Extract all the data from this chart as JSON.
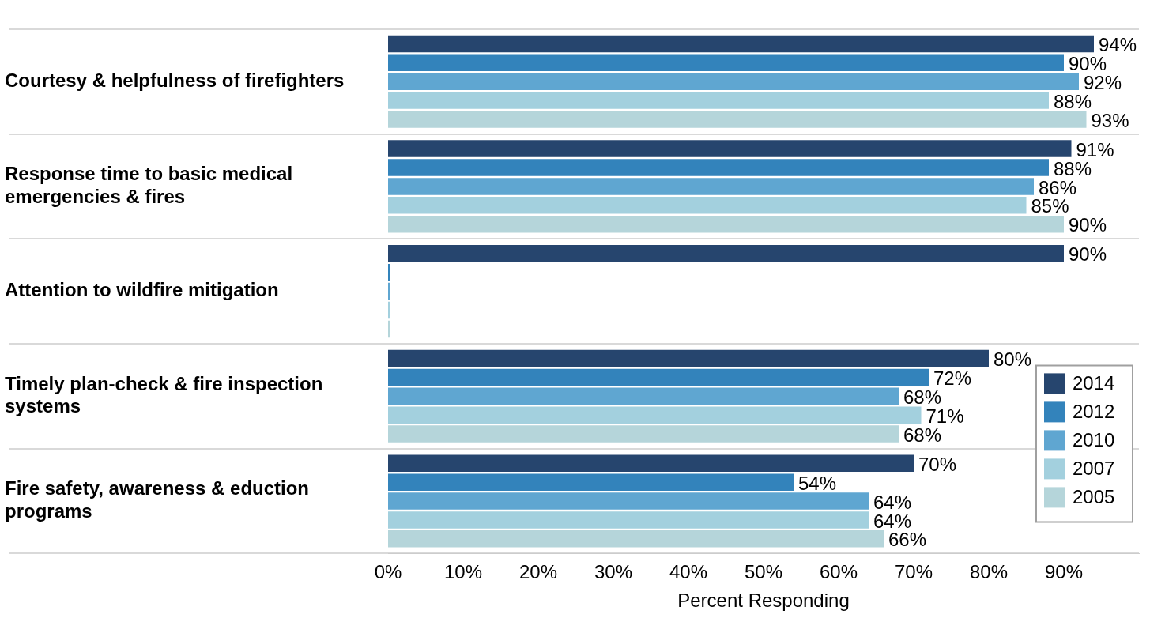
{
  "chart_data": {
    "type": "bar",
    "orientation": "horizontal",
    "xlabel": "Percent Responding",
    "categories": [
      "Courtesy & helpfulness of firefighters",
      "Response time to basic medical emergencies & fires",
      "Attention to wildfire mitigation",
      "Timely plan-check & fire inspection systems",
      "Fire safety, awareness & eduction programs"
    ],
    "series": [
      {
        "name": "2014",
        "color": "#26456e",
        "values": [
          94,
          91,
          90,
          80,
          70
        ],
        "value_labels": [
          "94%",
          "91%",
          "90%",
          "80%",
          "70%"
        ]
      },
      {
        "name": "2012",
        "color": "#3383bb",
        "values": [
          90,
          88,
          0,
          72,
          54
        ],
        "value_labels": [
          "90%",
          "88%",
          null,
          "72%",
          "54%"
        ]
      },
      {
        "name": "2010",
        "color": "#5fa6d1",
        "values": [
          92,
          86,
          0,
          68,
          64
        ],
        "value_labels": [
          "92%",
          "86%",
          null,
          "68%",
          "64%"
        ]
      },
      {
        "name": "2007",
        "color": "#a3d0de",
        "values": [
          88,
          85,
          0,
          71,
          64
        ],
        "value_labels": [
          "88%",
          "85%",
          null,
          "71%",
          "64%"
        ]
      },
      {
        "name": "2005",
        "color": "#b5d5da",
        "values": [
          93,
          90,
          0,
          68,
          66
        ],
        "value_labels": [
          "93%",
          "90%",
          null,
          "68%",
          "66%"
        ]
      }
    ],
    "xlim": [
      0,
      100
    ],
    "xticks": [
      {
        "value": 0,
        "label": "0%"
      },
      {
        "value": 10,
        "label": "10%"
      },
      {
        "value": 20,
        "label": "20%"
      },
      {
        "value": 30,
        "label": "30%"
      },
      {
        "value": 40,
        "label": "40%"
      },
      {
        "value": 50,
        "label": "50%"
      },
      {
        "value": 60,
        "label": "60%"
      },
      {
        "value": 70,
        "label": "70%"
      },
      {
        "value": 80,
        "label": "80%"
      },
      {
        "value": 90,
        "label": "90%"
      }
    ],
    "grid": "y",
    "legend": "bottom right"
  }
}
